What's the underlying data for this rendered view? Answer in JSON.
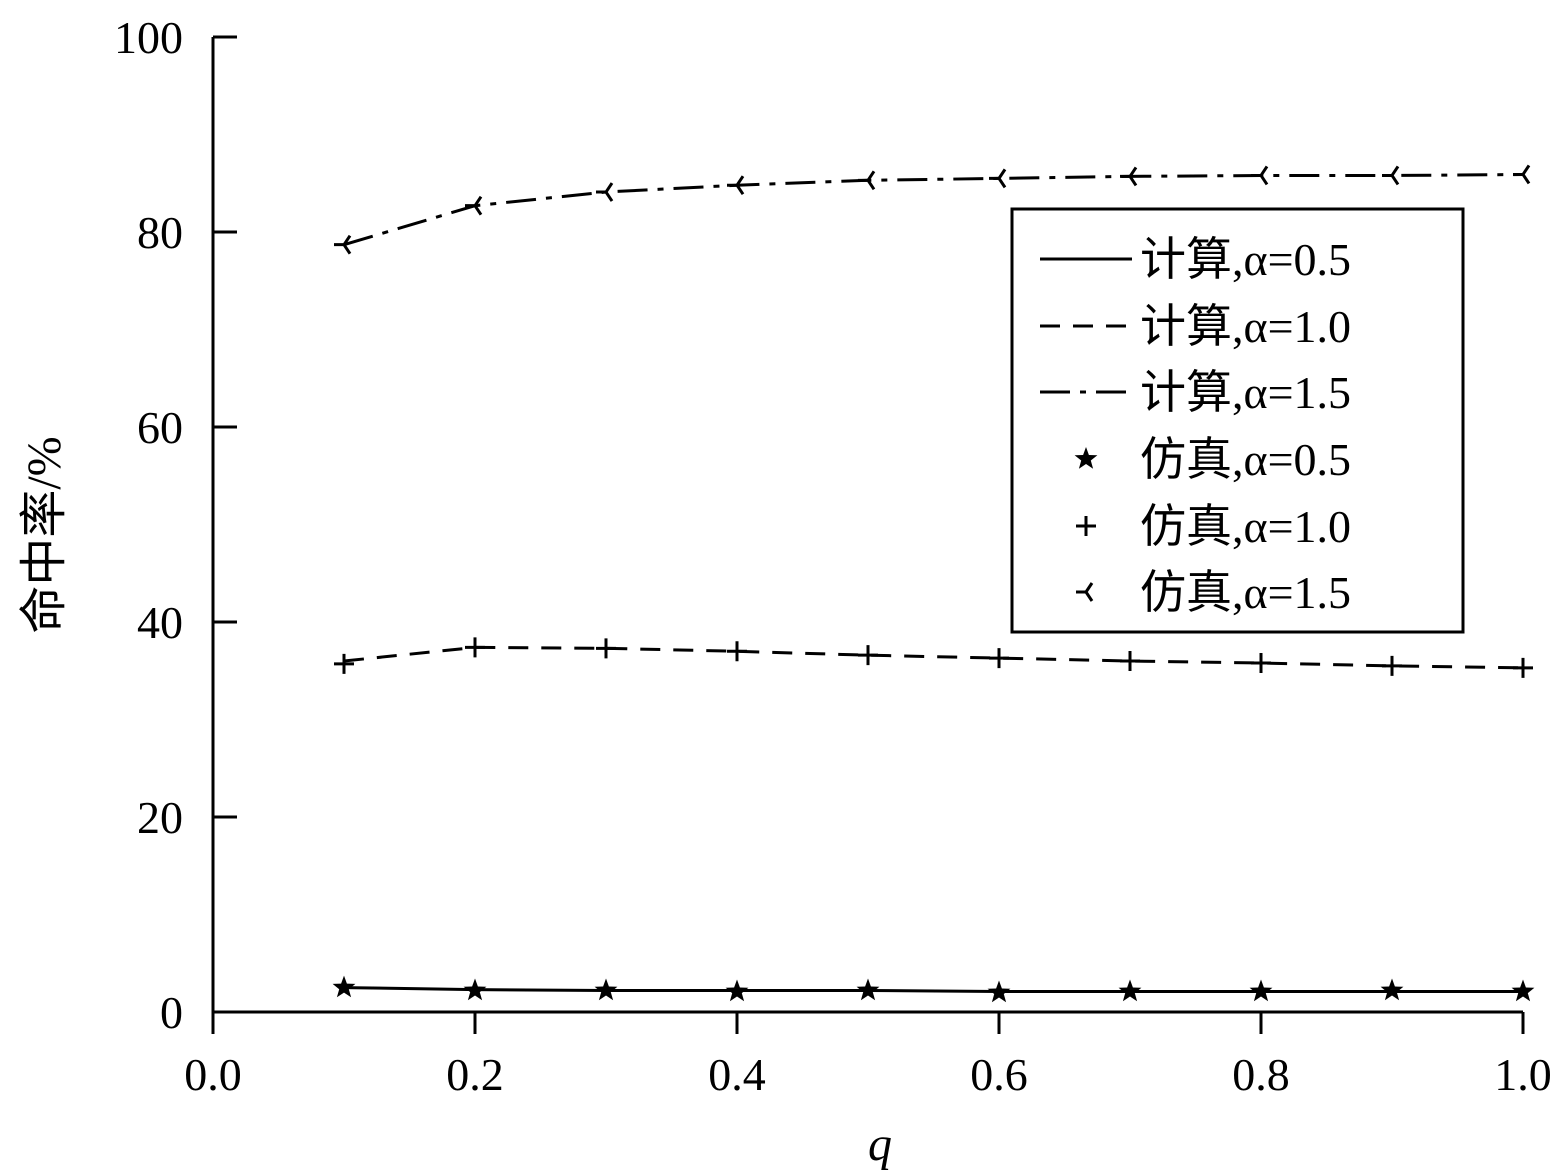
{
  "chart_data": {
    "type": "line",
    "xlabel": "q",
    "ylabel": "命中率/%",
    "xlim": [
      0.0,
      1.0
    ],
    "ylim": [
      0,
      100
    ],
    "xticks": [
      "0.0",
      "0.2",
      "0.4",
      "0.6",
      "0.8",
      "1.0"
    ],
    "yticks": [
      "0",
      "20",
      "40",
      "60",
      "80",
      "100"
    ],
    "grid": false,
    "legend_position": "top-right",
    "x": [
      0.1,
      0.2,
      0.3,
      0.4,
      0.5,
      0.6,
      0.7,
      0.8,
      0.9,
      1.0
    ],
    "series": [
      {
        "name": "计算,α=0.5",
        "style": "solid",
        "values": [
          2.5,
          2.3,
          2.2,
          2.2,
          2.2,
          2.1,
          2.1,
          2.1,
          2.1,
          2.1
        ]
      },
      {
        "name": "计算,α=1.0",
        "style": "dashed",
        "values": [
          36.0,
          37.4,
          37.3,
          37.0,
          36.6,
          36.3,
          36.0,
          35.8,
          35.5,
          35.3
        ]
      },
      {
        "name": "计算,α=1.5",
        "style": "dashdot",
        "values": [
          78.7,
          82.7,
          84.1,
          84.8,
          85.3,
          85.5,
          85.7,
          85.8,
          85.8,
          85.9
        ]
      },
      {
        "name": "仿真,α=0.5",
        "marker": "star",
        "values": [
          2.5,
          2.2,
          2.2,
          2.1,
          2.2,
          2.0,
          2.1,
          2.1,
          2.2,
          2.1
        ]
      },
      {
        "name": "仿真,α=1.0",
        "marker": "plus",
        "values": [
          35.7,
          37.4,
          37.3,
          37.0,
          36.6,
          36.3,
          36.0,
          35.8,
          35.5,
          35.3
        ]
      },
      {
        "name": "仿真,α=1.5",
        "marker": "tri-left",
        "values": [
          78.7,
          82.7,
          84.1,
          84.8,
          85.3,
          85.5,
          85.7,
          85.8,
          85.8,
          85.9
        ]
      }
    ]
  }
}
